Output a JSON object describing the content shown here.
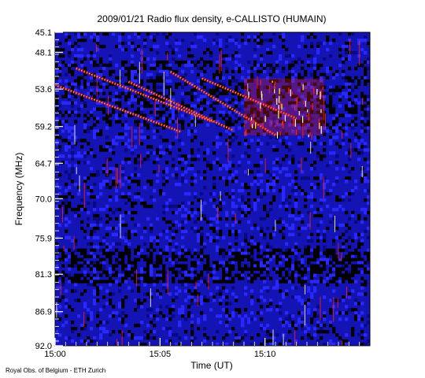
{
  "chart_data": {
    "type": "heatmap",
    "title": "2009/01/21  Radio flux density, e-CALLISTO (HUMAIN)",
    "xlabel": "Time (UT)",
    "ylabel": "Frequency (MHz)",
    "x_ticks": [
      "15:00",
      "15:05",
      "15:10"
    ],
    "x_tick_minutes": [
      0,
      5,
      10
    ],
    "x_range_minutes": [
      0,
      15
    ],
    "y_ticks": [
      "45.1",
      "48.1",
      "53.6",
      "59.2",
      "64.7",
      "70.0",
      "75.9",
      "81.3",
      "86.9",
      "92.0"
    ],
    "y_range": [
      45.1,
      92.0
    ],
    "colors": {
      "background": "#1414b4",
      "low": "#000000",
      "mid": "#2828ff",
      "high_red": "#ff2010",
      "high_yellow": "#ffff40",
      "peak": "#ffffff"
    },
    "features": [
      {
        "type": "drifting_burst",
        "start_min": 0.0,
        "start_mhz": 53.0,
        "end_min": 6.0,
        "end_mhz": 60.0
      },
      {
        "type": "drifting_burst",
        "start_min": 1.0,
        "start_mhz": 50.5,
        "end_min": 7.5,
        "end_mhz": 58.5
      },
      {
        "type": "drifting_burst",
        "start_min": 3.5,
        "start_mhz": 52.5,
        "end_min": 8.5,
        "end_mhz": 59.8
      },
      {
        "type": "drifting_burst",
        "start_min": 5.5,
        "start_mhz": 51.0,
        "end_min": 10.5,
        "end_mhz": 60.5
      },
      {
        "type": "drifting_burst",
        "start_min": 7.0,
        "start_mhz": 52.0,
        "end_min": 11.5,
        "end_mhz": 58.0
      },
      {
        "type": "emission_patch",
        "start_min": 9.0,
        "end_min": 12.8,
        "low_mhz": 52.0,
        "high_mhz": 60.5
      }
    ]
  },
  "credit": "Royal Obs. of Belgium - ETH Zurich"
}
